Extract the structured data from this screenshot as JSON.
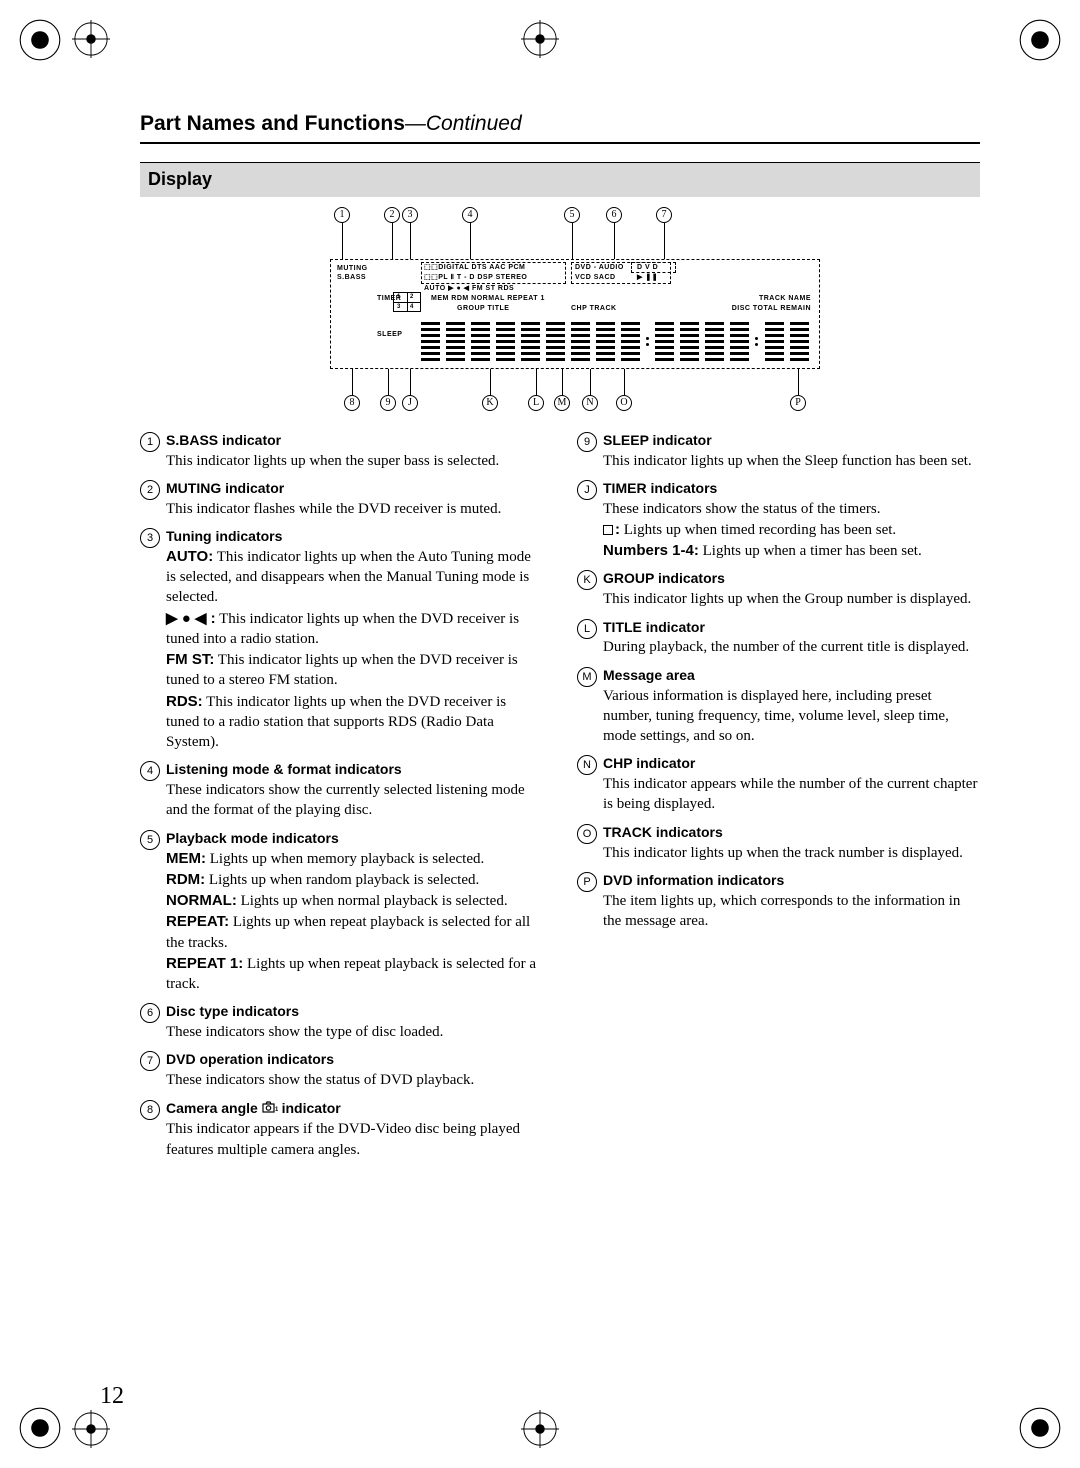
{
  "page": {
    "title_main": "Part Names and Functions",
    "title_cont": "—Continued",
    "section": "Display",
    "number": "12"
  },
  "diagram": {
    "labels": {
      "muting": "MUTING",
      "sbass": "S.BASS",
      "fmt_line1": "⬚⬚DIGITAL  DTS  AAC  PCM",
      "fmt_line2": "⬚⬚PL Ⅱ   T - D DSP  STEREO",
      "disc_line1": "DVD - AUDIO",
      "disc_line2": "VCD   SACD",
      "dvd": "D V D",
      "play": "▶ ❚❚",
      "tuning": "AUTO ▶ ● ◀  FM ST  RDS",
      "timer": "TIMER",
      "sleep": "SLEEP",
      "playmode": "MEM   RDM            NORMAL  REPEAT 1",
      "grouptitle": "GROUP   TITLE",
      "chptrack": "CHP  TRACK",
      "trackname": "TRACK   NAME",
      "disctotal": "DISC  TOTAL  REMAIN",
      "t1": "1",
      "t2": "2",
      "t3": "3",
      "t4": "4"
    },
    "callouts_top": [
      "1",
      "2",
      "3",
      "4",
      "5",
      "6",
      "7"
    ],
    "callouts_bot": [
      "8",
      "9",
      "J",
      "K",
      "L",
      "M",
      "N",
      "O",
      "P"
    ],
    "callouts_top_x": [
      54,
      104,
      122,
      182,
      284,
      326,
      376
    ],
    "callouts_bot_x": [
      64,
      100,
      122,
      202,
      248,
      274,
      302,
      336,
      510
    ]
  },
  "left": [
    {
      "n": "1",
      "h": "S.BASS indicator",
      "p": [
        {
          "t": "This indicator lights up when the super bass is selected."
        }
      ]
    },
    {
      "n": "2",
      "h": "MUTING indicator",
      "p": [
        {
          "t": "This indicator flashes while the DVD receiver is muted."
        }
      ]
    },
    {
      "n": "3",
      "h": "Tuning indicators",
      "p": [
        {
          "b": "AUTO:",
          "t": " This indicator lights up when the Auto Tuning mode is selected, and disappears when the Manual Tuning mode is selected."
        },
        {
          "b": "▶ ● ◀ :",
          "t": " This indicator lights up when the DVD receiver is tuned into a radio station."
        },
        {
          "b": "FM ST:",
          "t": " This indicator lights up when the DVD receiver is tuned to a stereo FM station."
        },
        {
          "b": "RDS:",
          "t": " This indicator lights up when the DVD receiver is tuned to a radio station that supports RDS (Radio Data System)."
        }
      ]
    },
    {
      "n": "4",
      "h": "Listening mode & format indicators",
      "p": [
        {
          "t": "These indicators show the currently selected listening mode and the format of the playing disc."
        }
      ]
    },
    {
      "n": "5",
      "h": "Playback mode indicators",
      "p": [
        {
          "b": "MEM:",
          "t": " Lights up when memory playback is selected."
        },
        {
          "b": "RDM:",
          "t": " Lights up when random playback is selected."
        },
        {
          "b": "NORMAL:",
          "t": " Lights up when normal playback is selected."
        },
        {
          "b": "REPEAT:",
          "t": " Lights up when repeat playback is selected for all the tracks."
        },
        {
          "b": "REPEAT 1:",
          "t": " Lights up when repeat playback is selected for a track."
        }
      ]
    },
    {
      "n": "6",
      "h": "Disc type indicators",
      "p": [
        {
          "t": "These indicators show the type of disc loaded."
        }
      ]
    },
    {
      "n": "7",
      "h": "DVD operation indicators",
      "p": [
        {
          "t": "These indicators show the status of DVD playback."
        }
      ]
    },
    {
      "n": "8",
      "h": "Camera angle  ",
      "icon": "camera",
      "h2": "  indicator",
      "p": [
        {
          "t": "This indicator appears if the DVD-Video disc being played features multiple camera angles."
        }
      ]
    }
  ],
  "right": [
    {
      "n": "9",
      "h": "SLEEP indicator",
      "p": [
        {
          "t": "This indicator lights up when the Sleep function has been set."
        }
      ]
    },
    {
      "n": "J",
      "h": "TIMER indicators",
      "p": [
        {
          "t": "These indicators show the status of the timers."
        },
        {
          "b": "□:",
          "sq": true,
          "t": " Lights up when timed recording has been set."
        },
        {
          "b": "Numbers 1-4:",
          "t": " Lights up when a timer has been set."
        }
      ]
    },
    {
      "n": "K",
      "h": "GROUP indicators",
      "p": [
        {
          "t": "This indicator lights up when the Group number is displayed."
        }
      ]
    },
    {
      "n": "L",
      "h": "TITLE indicator",
      "p": [
        {
          "t": "During playback, the number of the current title is displayed."
        }
      ]
    },
    {
      "n": "M",
      "h": "Message area",
      "p": [
        {
          "t": "Various information is displayed here, including preset number, tuning frequency, time, volume level, sleep time, mode settings, and so on."
        }
      ]
    },
    {
      "n": "N",
      "h": "CHP indicator",
      "p": [
        {
          "t": "This indicator appears while the number of the current chapter is being displayed."
        }
      ]
    },
    {
      "n": "O",
      "h": "TRACK indicators",
      "p": [
        {
          "t": "This indicator lights up when the track number is displayed."
        }
      ]
    },
    {
      "n": "P",
      "h": "DVD information indicators",
      "p": [
        {
          "t": "The item lights up, which corresponds to the information in the message area."
        }
      ]
    }
  ]
}
